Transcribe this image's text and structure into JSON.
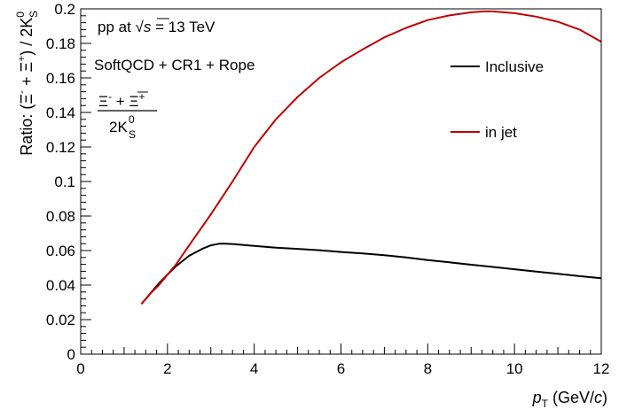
{
  "chart_data": {
    "type": "line",
    "title": "",
    "xlabel": {
      "var": "p",
      "sub": "T",
      "unit_open": " (GeV/",
      "unit_var": "c",
      "unit_close": ")"
    },
    "ylabel": {
      "prefix": "Ratio: (",
      "xi": "Ξ",
      "minus": "-",
      "plus": " + ",
      "plus_sup": "+",
      "suffix": ") / 2K",
      "k_sup": "0",
      "k_sub": "S"
    },
    "xlim": [
      0,
      12
    ],
    "ylim": [
      0,
      0.2
    ],
    "xticks": [
      0,
      2,
      4,
      6,
      8,
      10,
      12
    ],
    "yticks": [
      0,
      0.02,
      0.04,
      0.06,
      0.08,
      0.1,
      0.12,
      0.14,
      0.16,
      0.18,
      0.2
    ],
    "grid": false,
    "legend_position": "top-right",
    "annotations": {
      "energy": {
        "pre": "pp at ",
        "root": "√",
        "var": "s",
        "post": " = 13 TeV"
      },
      "model": "SoftQCD + CR1 + Rope",
      "ratio_numerator": {
        "xi": "Ξ",
        "minus": "-",
        "plus": " + ",
        "plus_sup": "+"
      },
      "ratio_denominator": {
        "text": "2K",
        "sup": "0",
        "sub": "S"
      }
    },
    "series": [
      {
        "name": "Inclusive",
        "color": "#000000",
        "x": [
          1.4,
          1.6,
          1.8,
          2.0,
          2.2,
          2.5,
          2.8,
          3.0,
          3.2,
          3.3,
          3.5,
          4.0,
          4.5,
          5.0,
          5.5,
          6.0,
          6.5,
          7.0,
          7.5,
          8.0,
          8.5,
          9.0,
          9.5,
          10.0,
          10.5,
          11.0,
          11.5,
          12.0
        ],
        "y": [
          0.029,
          0.035,
          0.041,
          0.046,
          0.051,
          0.057,
          0.061,
          0.063,
          0.064,
          0.064,
          0.0638,
          0.0627,
          0.0617,
          0.061,
          0.0602,
          0.0592,
          0.0583,
          0.0573,
          0.056,
          0.0545,
          0.0532,
          0.0518,
          0.0505,
          0.0492,
          0.0478,
          0.0465,
          0.0452,
          0.044
        ]
      },
      {
        "name": "in jet",
        "color": "#c00000",
        "x": [
          1.4,
          1.6,
          1.8,
          2.0,
          2.2,
          2.5,
          3.0,
          3.5,
          4.0,
          4.5,
          5.0,
          5.5,
          6.0,
          6.5,
          7.0,
          7.5,
          8.0,
          8.5,
          9.0,
          9.3,
          9.5,
          10.0,
          10.5,
          11.0,
          11.5,
          12.0
        ],
        "y": [
          0.029,
          0.035,
          0.04,
          0.046,
          0.052,
          0.063,
          0.081,
          0.1,
          0.12,
          0.136,
          0.149,
          0.16,
          0.169,
          0.1765,
          0.1835,
          0.189,
          0.1935,
          0.1962,
          0.198,
          0.1985,
          0.1985,
          0.1975,
          0.1955,
          0.1925,
          0.188,
          0.181
        ]
      }
    ]
  }
}
